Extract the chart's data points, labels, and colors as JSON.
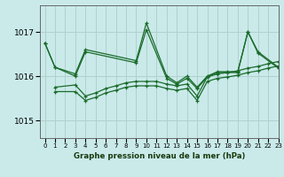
{
  "title": "Graphe pression niveau de la mer (hPa)",
  "background_color": "#caeaea",
  "grid_color": "#b0d0d0",
  "line_color": "#1a6b2a",
  "xlim": [
    -0.5,
    23
  ],
  "ylim": [
    1014.6,
    1017.6
  ],
  "yticks": [
    1015,
    1016,
    1017
  ],
  "xticks": [
    0,
    1,
    2,
    3,
    4,
    5,
    6,
    7,
    8,
    9,
    10,
    11,
    12,
    13,
    14,
    15,
    16,
    17,
    18,
    19,
    20,
    21,
    22,
    23
  ],
  "series": [
    {
      "x": [
        0,
        1,
        3,
        4,
        9,
        10,
        12,
        13,
        14,
        15,
        16,
        17,
        18,
        19,
        20,
        21,
        23
      ],
      "y": [
        1016.75,
        1016.2,
        1016.05,
        1016.6,
        1016.35,
        1017.2,
        1016.0,
        1015.85,
        1016.0,
        1015.75,
        1016.0,
        1016.1,
        1016.1,
        1016.1,
        1017.0,
        1016.55,
        1016.2
      ]
    },
    {
      "x": [
        0,
        1,
        3,
        4,
        9,
        10,
        12,
        13,
        14,
        15,
        16,
        17,
        18,
        19,
        20,
        21,
        23
      ],
      "y": [
        1016.75,
        1016.2,
        1016.0,
        1016.55,
        1016.3,
        1017.05,
        1015.95,
        1015.82,
        1015.95,
        1015.72,
        1015.98,
        1016.08,
        1016.08,
        1016.08,
        1017.0,
        1016.52,
        1016.18
      ]
    },
    {
      "x": [
        1,
        3,
        4,
        5,
        6,
        7,
        8,
        9,
        10,
        11,
        12,
        13,
        14,
        15,
        16,
        17,
        18,
        19,
        20,
        21,
        22,
        23
      ],
      "y": [
        1015.75,
        1015.8,
        1015.55,
        1015.62,
        1015.72,
        1015.78,
        1015.85,
        1015.88,
        1015.88,
        1015.88,
        1015.82,
        1015.78,
        1015.82,
        1015.55,
        1015.98,
        1016.05,
        1016.08,
        1016.12,
        1016.18,
        1016.22,
        1016.28,
        1016.33
      ]
    },
    {
      "x": [
        1,
        3,
        4,
        5,
        6,
        7,
        8,
        9,
        10,
        11,
        12,
        13,
        14,
        15,
        16,
        17,
        18,
        19,
        20,
        21,
        22,
        23
      ],
      "y": [
        1015.65,
        1015.65,
        1015.45,
        1015.52,
        1015.62,
        1015.68,
        1015.75,
        1015.78,
        1015.78,
        1015.78,
        1015.72,
        1015.68,
        1015.72,
        1015.45,
        1015.88,
        1015.95,
        1015.98,
        1016.02,
        1016.08,
        1016.12,
        1016.18,
        1016.23
      ]
    }
  ]
}
